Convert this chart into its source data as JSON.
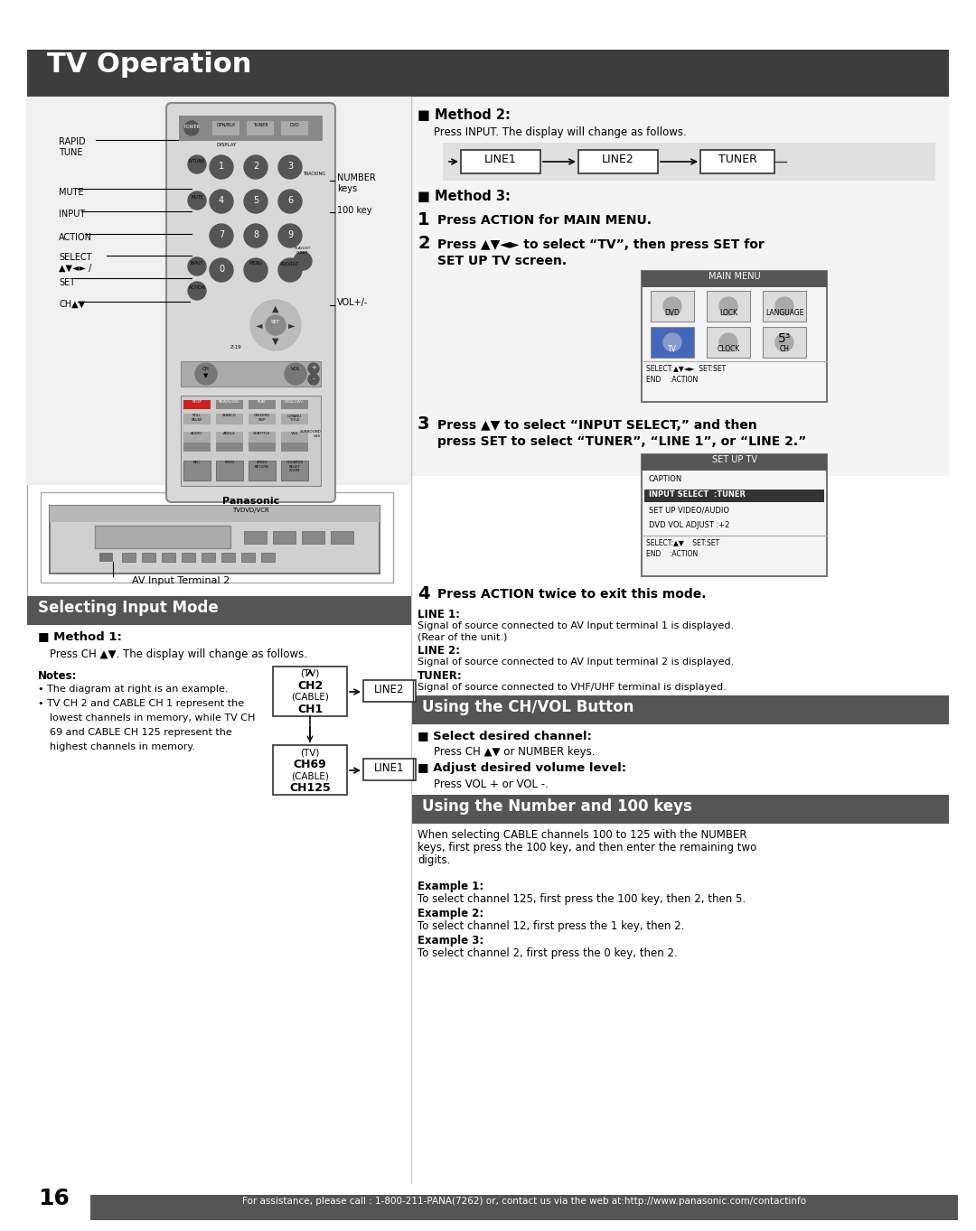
{
  "page_bg": "#ffffff",
  "header_bg": "#3d3d3d",
  "header_text": "TV Operation",
  "footer_text": "For assistance, please call : 1-800-211-PANA(7262) or, contact us via the web at:http://www.panasonic.com/contactinfo",
  "footer_number": "16",
  "method2_header": "■ Method 2:",
  "method2_sub": "Press INPUT. The display will change as follows.",
  "flow_items": [
    "LINE1",
    "LINE2",
    "TUNER"
  ],
  "method3_header": "■ Method 3:",
  "step1": "Press ACTION for MAIN MENU.",
  "step2a": "Press ▲▼◄► to select “TV”, then press SET for",
  "step2b": "SET UP TV screen.",
  "step3a": "Press ▲▼ to select “INPUT SELECT,” and then",
  "step3b": "press SET to select “TUNER”, “LINE 1”, or “LINE 2.”",
  "step4": "Press ACTION twice to exit this mode.",
  "line1_label": "LINE 1:",
  "line1_text": "Signal of source connected to AV Input terminal 1 is displayed.",
  "line1_sub": "(Rear of the unit.)",
  "line2_label": "LINE 2:",
  "line2_text": "Signal of source connected to AV Input terminal 2 is displayed.",
  "tuner_label": "TUNER:",
  "tuner_text": "Signal of source connected to VHF/UHF terminal is displayed.",
  "select_input_header": "Selecting Input Mode",
  "method1_header": "■ Method 1:",
  "method1_sub": "Press CH ▲▼. The display will change as follows.",
  "notes_header": "Notes:",
  "note1": "The diagram at right is an example.",
  "note2a": "TV CH 2 and CABLE CH 1 represent the",
  "note2b": "lowest channels in memory, while TV CH",
  "note2c": "69 and CABLE CH 125 represent the",
  "note2d": "highest channels in memory.",
  "ch_vol_header": "Using the CH/VOL Button",
  "select_ch_header": "■ Select desired channel:",
  "select_ch_text": "Press CH ▲▼ or NUMBER keys.",
  "adjust_vol_header": "■ Adjust desired volume level:",
  "adjust_vol_text": "Press VOL + or VOL -.",
  "num100_header": "Using the Number and 100 keys",
  "num100_text1": "When selecting CABLE channels 100 to 125 with the NUMBER",
  "num100_text2": "keys, first press the 100 key, and then enter the remaining two",
  "num100_text3": "digits.",
  "ex1_label": "Example 1:",
  "ex1_text": "To select channel 125, first press the 100 key, then 2, then 5.",
  "ex2_label": "Example 2:",
  "ex2_text": "To select channel 12, first press the 1 key, then 2.",
  "ex3_label": "Example 3:",
  "ex3_text": "To select channel 2, first press the 0 key, then 2.",
  "av_label": "AV Input Terminal 2",
  "rapid_tune": "RAPID\nTUNE",
  "mute_lbl": "MUTE",
  "input_lbl": "INPUT",
  "action_lbl": "ACTION",
  "select_lbl": "SELECT\n▲▼◄► /",
  "set_lbl": "SET",
  "ch_lbl": "CH▲▼",
  "number_keys_lbl": "NUMBER\nkeys",
  "key100_lbl": "100 key",
  "vol_lbl": "VOL+/-",
  "panasonic": "Panasonic",
  "tvdvdvcr": "TVDVD/VCR",
  "main_menu_title": "MAIN MENU",
  "main_menu_row1": [
    "DVD",
    "LOCK",
    "LANGUAGE"
  ],
  "main_menu_row2": [
    "TV",
    "CLOCK",
    "CH"
  ],
  "main_menu_bot1": "SELECT:▲▼◄►  SET:SET",
  "main_menu_bot2": "END    :ACTION",
  "setup_tv_title": "SET UP TV",
  "setup_items": [
    "CAPTION",
    "INPUT SELECT  :TUNER",
    "SET UP VIDEO/AUDIO",
    "DVD VOL ADJUST :+2"
  ],
  "setup_highlight": 1,
  "setup_bot1": "SELECT:▲▼    SET:SET",
  "setup_bot2": "END    :ACTION"
}
